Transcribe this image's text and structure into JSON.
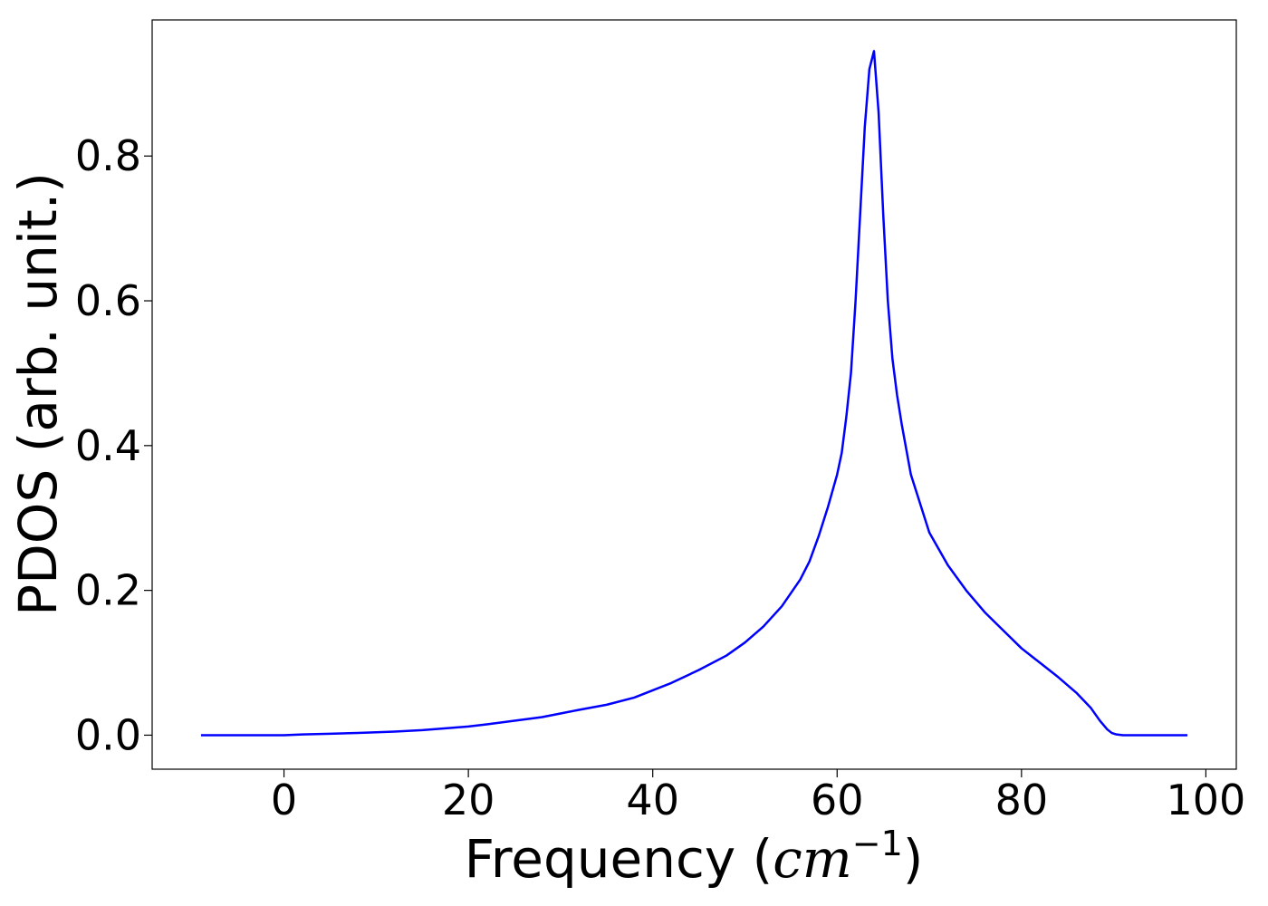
{
  "chart_data": {
    "type": "line",
    "title": "",
    "xlabel": "Frequency (",
    "xlabel_math": "cm",
    "xlabel_exp": "−1",
    "xlabel_close": ")",
    "ylabel": "PDOS (arb. unit.)",
    "xlim": [
      -14.3,
      103.3
    ],
    "ylim": [
      -0.047,
      0.988
    ],
    "xticks": [
      0,
      20,
      40,
      60,
      80,
      100
    ],
    "xtick_labels": [
      "0",
      "20",
      "40",
      "60",
      "80",
      "100"
    ],
    "yticks": [
      0.0,
      0.2,
      0.4,
      0.6,
      0.8
    ],
    "ytick_labels": [
      "0.0",
      "0.2",
      "0.4",
      "0.6",
      "0.8"
    ],
    "grid": false,
    "legend": "none",
    "series": [
      {
        "color": "#0000ff",
        "x": [
          -9,
          -5,
          0,
          2,
          5,
          8,
          10,
          12,
          15,
          18,
          20,
          22,
          25,
          28,
          30,
          32,
          35,
          38,
          40,
          42,
          45,
          48,
          50,
          52,
          54,
          56,
          57,
          58,
          59,
          60,
          60.5,
          61,
          61.5,
          62,
          62.5,
          63,
          63.5,
          64,
          64.5,
          65,
          65.5,
          66,
          66.5,
          67,
          68,
          69,
          70,
          72,
          74,
          76,
          78,
          80,
          82,
          84,
          86,
          87.5,
          88.5,
          89.3,
          89.8,
          90.3,
          91,
          93,
          95,
          98
        ],
        "y": [
          0.0,
          0.0,
          0.0,
          0.001,
          0.002,
          0.003,
          0.004,
          0.005,
          0.007,
          0.01,
          0.012,
          0.015,
          0.02,
          0.025,
          0.03,
          0.035,
          0.042,
          0.052,
          0.062,
          0.072,
          0.09,
          0.11,
          0.128,
          0.15,
          0.178,
          0.215,
          0.24,
          0.275,
          0.315,
          0.36,
          0.39,
          0.44,
          0.5,
          0.6,
          0.72,
          0.84,
          0.92,
          0.945,
          0.86,
          0.72,
          0.6,
          0.52,
          0.47,
          0.43,
          0.36,
          0.32,
          0.28,
          0.235,
          0.2,
          0.17,
          0.145,
          0.12,
          0.1,
          0.08,
          0.058,
          0.038,
          0.02,
          0.008,
          0.003,
          0.001,
          0.0,
          0.0,
          0.0,
          0.0
        ]
      }
    ]
  }
}
